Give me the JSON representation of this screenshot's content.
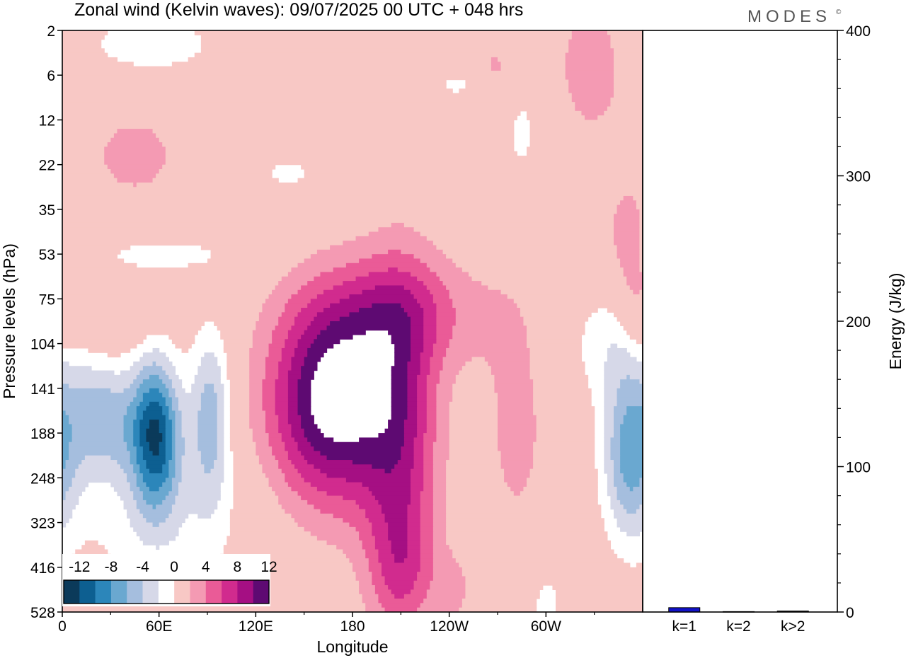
{
  "title": "Zonal wind (Kelvin waves):  09/07/2025  00 UTC  + 048 hrs",
  "logo": "MODES",
  "logo_mark": "©",
  "colors": {
    "neg": [
      "#0b3a5a",
      "#0d5f91",
      "#2c86ba",
      "#6aa8d0",
      "#a5bede",
      "#d6d8e8"
    ],
    "zero": "#ffffff",
    "pos": [
      "#f8c8c5",
      "#f49ab3",
      "#ea5b97",
      "#d12b8e",
      "#a50f83",
      "#5e0a72"
    ],
    "bar_fill": "#1212c8"
  },
  "chart_data": [
    {
      "type": "heatmap",
      "title": "Zonal wind (Kelvin waves):  09/07/2025  00 UTC  + 048 hrs",
      "xlabel": "Longitude",
      "ylabel": "Pressure levels (hPa)",
      "xticks": [
        "0",
        "60E",
        "120E",
        "180",
        "120W",
        "60W"
      ],
      "xtick_lon": [
        0,
        60,
        120,
        180,
        240,
        300
      ],
      "xlim": [
        0,
        360
      ],
      "yticks": [
        "2",
        "6",
        "12",
        "22",
        "35",
        "53",
        "75",
        "104",
        "141",
        "188",
        "248",
        "323",
        "416",
        "528"
      ],
      "colorbar": {
        "labels": [
          "-12",
          "-8",
          "-4",
          "0",
          "4",
          "8",
          "12"
        ],
        "levels": [
          -14,
          -12,
          -10,
          -8,
          -6,
          -4,
          -2,
          2,
          4,
          6,
          8,
          10,
          12,
          14
        ]
      },
      "features": [
        {
          "lon": 168,
          "lev": 8.3,
          "amp": 13.5,
          "sx": 28,
          "sy": 1.6
        },
        {
          "lon": 210,
          "lev": 9.3,
          "amp": 6.5,
          "sx": 17,
          "sy": 2.8
        },
        {
          "lon": 210,
          "lev": 6.3,
          "amp": 4.8,
          "sx": 38,
          "sy": 0.9
        },
        {
          "lon": 210,
          "lev": 12.0,
          "amp": 3.5,
          "sx": 14,
          "sy": 1.0
        },
        {
          "lon": 282,
          "lev": 8.8,
          "amp": 2.6,
          "sx": 16,
          "sy": 2.2
        },
        {
          "lon": 328,
          "lev": 0.8,
          "amp": 3.2,
          "sx": 16,
          "sy": 1.2
        },
        {
          "lon": 268,
          "lev": 1.0,
          "amp": 3.0,
          "sx": 10,
          "sy": 0.5
        },
        {
          "lon": 45,
          "lev": 2.8,
          "amp": 2.6,
          "sx": 26,
          "sy": 0.9
        },
        {
          "lon": 25,
          "lev": 6.6,
          "amp": 2.9,
          "sx": 17,
          "sy": 0.35
        },
        {
          "lon": 350,
          "lev": 4.8,
          "amp": 3.2,
          "sx": 10,
          "sy": 1.0
        },
        {
          "lon": 358,
          "lev": 6.3,
          "amp": 2.8,
          "sx": 8,
          "sy": 0.8
        },
        {
          "lon": 52,
          "lev": 12.4,
          "amp": 2.6,
          "sx": 7,
          "sy": 0.35
        },
        {
          "lon": 242,
          "lev": 12.5,
          "amp": 2.6,
          "sx": 8,
          "sy": 0.55
        },
        {
          "lon": 58,
          "lev": 9.0,
          "amp": -13.0,
          "sx": 11,
          "sy": 1.2
        },
        {
          "lon": 25,
          "lev": 8.7,
          "amp": -7.0,
          "sx": 16,
          "sy": 0.9
        },
        {
          "lon": 92,
          "lev": 8.6,
          "amp": -7.0,
          "sx": 9,
          "sy": 1.4
        },
        {
          "lon": 352,
          "lev": 9.5,
          "amp": -8.5,
          "sx": 12,
          "sy": 1.3
        },
        {
          "lon": 60,
          "lev": 11.0,
          "amp": -3.0,
          "sx": 40,
          "sy": 1.3
        },
        {
          "lon": 345,
          "lev": 7.0,
          "amp": -3.5,
          "sx": 22,
          "sy": 1.0
        },
        {
          "lon": 300,
          "lev": 12.8,
          "amp": -3.0,
          "sx": 8,
          "sy": 0.6
        },
        {
          "lon": 60,
          "lev": 5.0,
          "amp": -2.6,
          "sx": 38,
          "sy": 0.4
        },
        {
          "lon": 140,
          "lev": 3.2,
          "amp": -2.6,
          "sx": 15,
          "sy": 0.3
        },
        {
          "lon": 285,
          "lev": 2.3,
          "amp": -2.8,
          "sx": 7,
          "sy": 0.7
        },
        {
          "lon": 55,
          "lev": 0.3,
          "amp": -3.5,
          "sx": 30,
          "sy": 0.5
        },
        {
          "lon": 250,
          "lev": 1.2,
          "amp": -2.6,
          "sx": 18,
          "sy": 0.3
        }
      ]
    },
    {
      "type": "bar",
      "ylabel": "Energy (J/kg)",
      "categories": [
        "k=1",
        "k=2",
        "k>2"
      ],
      "values": [
        3,
        0.3,
        0.7
      ],
      "ylim": [
        0,
        400
      ],
      "yticks": [
        "0",
        "100",
        "200",
        "300",
        "400"
      ]
    }
  ]
}
